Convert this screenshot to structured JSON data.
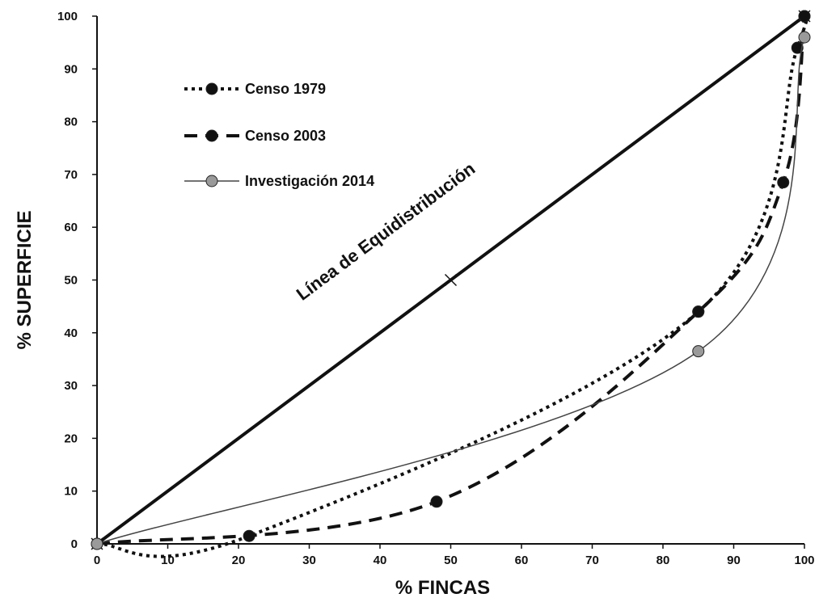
{
  "chart_data": {
    "type": "line",
    "title": "",
    "xlabel": "% FINCAS",
    "ylabel": "% SUPERFICIE",
    "xlim": [
      0,
      100
    ],
    "ylim": [
      0,
      100
    ],
    "xticks": [
      0,
      10,
      20,
      30,
      40,
      50,
      60,
      70,
      80,
      90,
      100
    ],
    "yticks": [
      0,
      10,
      20,
      30,
      40,
      50,
      60,
      70,
      80,
      90,
      100
    ],
    "grid": false,
    "legend_position": "top-left",
    "reference_line": {
      "label": "Línea de Equidistribución",
      "points": [
        [
          0,
          0
        ],
        [
          50,
          50
        ],
        [
          100,
          100
        ]
      ]
    },
    "series": [
      {
        "name": "Censo 1979",
        "style": "dotted",
        "color": "#111111",
        "points": [
          [
            0,
            0
          ],
          [
            21.5,
            1.5
          ],
          [
            85,
            44
          ],
          [
            99,
            94
          ],
          [
            100,
            100
          ]
        ]
      },
      {
        "name": "Censo 2003",
        "style": "dashed",
        "color": "#111111",
        "points": [
          [
            0,
            0
          ],
          [
            48,
            8
          ],
          [
            85,
            44
          ],
          [
            97,
            68.5
          ],
          [
            100,
            100
          ]
        ]
      },
      {
        "name": "Investigación 2014",
        "style": "solid-thin",
        "color": "#444444",
        "marker_color": "#9a9a9a",
        "points": [
          [
            0,
            0
          ],
          [
            85,
            36.5
          ],
          [
            100,
            96
          ]
        ]
      }
    ]
  }
}
